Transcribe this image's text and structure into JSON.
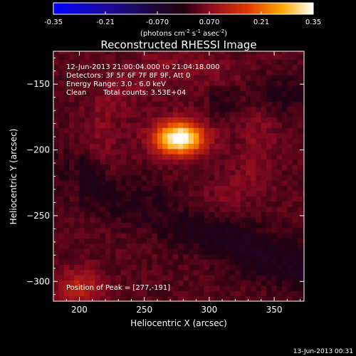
{
  "chart_data": {
    "type": "heatmap",
    "title": "Reconstructed RHESSI Image",
    "xlabel": "Heliocentric X (arcsec)",
    "ylabel": "Heliocentric Y (arcsec)",
    "xlim": [
      180,
      373
    ],
    "ylim": [
      -315,
      -125
    ],
    "x_ticks": [
      200,
      250,
      300,
      350
    ],
    "y_ticks": [
      -150,
      -200,
      -250,
      -300
    ],
    "colorbar": {
      "ticks": [
        "-0.35",
        "-0.21",
        "-0.070",
        "0.070",
        "0.21",
        "0.35"
      ],
      "min": -0.35,
      "max": 0.35,
      "units_label": "(photons cm",
      "units_exp1": "-2",
      "units_mid": " s",
      "units_exp2": "-1",
      "units_mid2": " asec",
      "units_exp3": "-2",
      "units_end": ")"
    },
    "peak": {
      "x": 277,
      "y": -191,
      "value": 0.35
    },
    "annotations": {
      "time": "12-Jun-2013 21:00:04.000 to 21:04:18.000",
      "detectors": "Detectors: 3F 5F 6F 7F 8F 9F, Att 0",
      "energy": "Energy Range: 3.0 - 6.0 keV",
      "clean_label": "Clean",
      "counts": "Total counts: 3.53E+04",
      "peak": "Position of Peak = [277,-191]"
    },
    "footer_date": "13-Jun-2013 00:31"
  }
}
